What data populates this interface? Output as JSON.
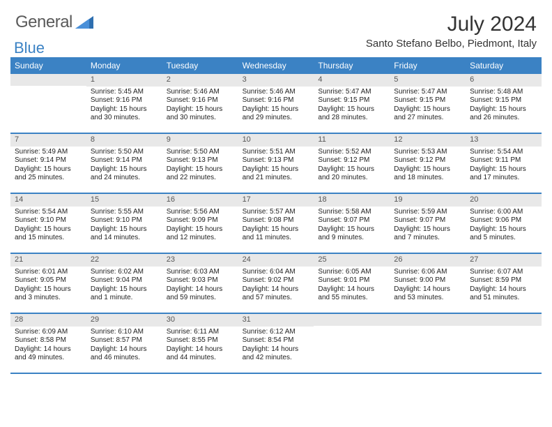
{
  "logo": {
    "word1": "General",
    "word2": "Blue"
  },
  "title": "July 2024",
  "location": "Santo Stefano Belbo, Piedmont, Italy",
  "colors": {
    "header_bg": "#3b82c4",
    "header_text": "#ffffff",
    "daynum_bg": "#e8e8e8",
    "border": "#3b82c4",
    "logo_gray": "#5a5a5a",
    "logo_blue": "#3b82c4"
  },
  "day_headers": [
    "Sunday",
    "Monday",
    "Tuesday",
    "Wednesday",
    "Thursday",
    "Friday",
    "Saturday"
  ],
  "weeks": [
    [
      {
        "n": "",
        "sr": "",
        "ss": "",
        "dl": ""
      },
      {
        "n": "1",
        "sr": "Sunrise: 5:45 AM",
        "ss": "Sunset: 9:16 PM",
        "dl": "Daylight: 15 hours and 30 minutes."
      },
      {
        "n": "2",
        "sr": "Sunrise: 5:46 AM",
        "ss": "Sunset: 9:16 PM",
        "dl": "Daylight: 15 hours and 30 minutes."
      },
      {
        "n": "3",
        "sr": "Sunrise: 5:46 AM",
        "ss": "Sunset: 9:16 PM",
        "dl": "Daylight: 15 hours and 29 minutes."
      },
      {
        "n": "4",
        "sr": "Sunrise: 5:47 AM",
        "ss": "Sunset: 9:15 PM",
        "dl": "Daylight: 15 hours and 28 minutes."
      },
      {
        "n": "5",
        "sr": "Sunrise: 5:47 AM",
        "ss": "Sunset: 9:15 PM",
        "dl": "Daylight: 15 hours and 27 minutes."
      },
      {
        "n": "6",
        "sr": "Sunrise: 5:48 AM",
        "ss": "Sunset: 9:15 PM",
        "dl": "Daylight: 15 hours and 26 minutes."
      }
    ],
    [
      {
        "n": "7",
        "sr": "Sunrise: 5:49 AM",
        "ss": "Sunset: 9:14 PM",
        "dl": "Daylight: 15 hours and 25 minutes."
      },
      {
        "n": "8",
        "sr": "Sunrise: 5:50 AM",
        "ss": "Sunset: 9:14 PM",
        "dl": "Daylight: 15 hours and 24 minutes."
      },
      {
        "n": "9",
        "sr": "Sunrise: 5:50 AM",
        "ss": "Sunset: 9:13 PM",
        "dl": "Daylight: 15 hours and 22 minutes."
      },
      {
        "n": "10",
        "sr": "Sunrise: 5:51 AM",
        "ss": "Sunset: 9:13 PM",
        "dl": "Daylight: 15 hours and 21 minutes."
      },
      {
        "n": "11",
        "sr": "Sunrise: 5:52 AM",
        "ss": "Sunset: 9:12 PM",
        "dl": "Daylight: 15 hours and 20 minutes."
      },
      {
        "n": "12",
        "sr": "Sunrise: 5:53 AM",
        "ss": "Sunset: 9:12 PM",
        "dl": "Daylight: 15 hours and 18 minutes."
      },
      {
        "n": "13",
        "sr": "Sunrise: 5:54 AM",
        "ss": "Sunset: 9:11 PM",
        "dl": "Daylight: 15 hours and 17 minutes."
      }
    ],
    [
      {
        "n": "14",
        "sr": "Sunrise: 5:54 AM",
        "ss": "Sunset: 9:10 PM",
        "dl": "Daylight: 15 hours and 15 minutes."
      },
      {
        "n": "15",
        "sr": "Sunrise: 5:55 AM",
        "ss": "Sunset: 9:10 PM",
        "dl": "Daylight: 15 hours and 14 minutes."
      },
      {
        "n": "16",
        "sr": "Sunrise: 5:56 AM",
        "ss": "Sunset: 9:09 PM",
        "dl": "Daylight: 15 hours and 12 minutes."
      },
      {
        "n": "17",
        "sr": "Sunrise: 5:57 AM",
        "ss": "Sunset: 9:08 PM",
        "dl": "Daylight: 15 hours and 11 minutes."
      },
      {
        "n": "18",
        "sr": "Sunrise: 5:58 AM",
        "ss": "Sunset: 9:07 PM",
        "dl": "Daylight: 15 hours and 9 minutes."
      },
      {
        "n": "19",
        "sr": "Sunrise: 5:59 AM",
        "ss": "Sunset: 9:07 PM",
        "dl": "Daylight: 15 hours and 7 minutes."
      },
      {
        "n": "20",
        "sr": "Sunrise: 6:00 AM",
        "ss": "Sunset: 9:06 PM",
        "dl": "Daylight: 15 hours and 5 minutes."
      }
    ],
    [
      {
        "n": "21",
        "sr": "Sunrise: 6:01 AM",
        "ss": "Sunset: 9:05 PM",
        "dl": "Daylight: 15 hours and 3 minutes."
      },
      {
        "n": "22",
        "sr": "Sunrise: 6:02 AM",
        "ss": "Sunset: 9:04 PM",
        "dl": "Daylight: 15 hours and 1 minute."
      },
      {
        "n": "23",
        "sr": "Sunrise: 6:03 AM",
        "ss": "Sunset: 9:03 PM",
        "dl": "Daylight: 14 hours and 59 minutes."
      },
      {
        "n": "24",
        "sr": "Sunrise: 6:04 AM",
        "ss": "Sunset: 9:02 PM",
        "dl": "Daylight: 14 hours and 57 minutes."
      },
      {
        "n": "25",
        "sr": "Sunrise: 6:05 AM",
        "ss": "Sunset: 9:01 PM",
        "dl": "Daylight: 14 hours and 55 minutes."
      },
      {
        "n": "26",
        "sr": "Sunrise: 6:06 AM",
        "ss": "Sunset: 9:00 PM",
        "dl": "Daylight: 14 hours and 53 minutes."
      },
      {
        "n": "27",
        "sr": "Sunrise: 6:07 AM",
        "ss": "Sunset: 8:59 PM",
        "dl": "Daylight: 14 hours and 51 minutes."
      }
    ],
    [
      {
        "n": "28",
        "sr": "Sunrise: 6:09 AM",
        "ss": "Sunset: 8:58 PM",
        "dl": "Daylight: 14 hours and 49 minutes."
      },
      {
        "n": "29",
        "sr": "Sunrise: 6:10 AM",
        "ss": "Sunset: 8:57 PM",
        "dl": "Daylight: 14 hours and 46 minutes."
      },
      {
        "n": "30",
        "sr": "Sunrise: 6:11 AM",
        "ss": "Sunset: 8:55 PM",
        "dl": "Daylight: 14 hours and 44 minutes."
      },
      {
        "n": "31",
        "sr": "Sunrise: 6:12 AM",
        "ss": "Sunset: 8:54 PM",
        "dl": "Daylight: 14 hours and 42 minutes."
      },
      {
        "n": "",
        "sr": "",
        "ss": "",
        "dl": ""
      },
      {
        "n": "",
        "sr": "",
        "ss": "",
        "dl": ""
      },
      {
        "n": "",
        "sr": "",
        "ss": "",
        "dl": ""
      }
    ]
  ]
}
